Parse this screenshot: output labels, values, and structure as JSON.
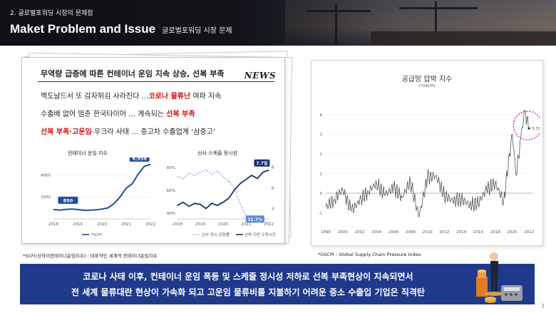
{
  "header": {
    "section": "2. 글로벌포워딩 시장의 문제점",
    "title": "Maket Problem and Issue",
    "subtitle": "글로벌포워딩 시장 문제"
  },
  "news": {
    "headline": "무역량 급증에 따른 컨테이너 운임 지속 상승, 선복 부족",
    "logo": "NEWS",
    "lines": [
      {
        "a": "맥도날드서 또 감자튀김 사라진다 …",
        "red": "코로나 물류난",
        "b": " 여파 지속"
      },
      {
        "a": "수출배 없어 멈춘 한국타이어 … 계속되는 ",
        "red": "선복 부족",
        "b": ""
      },
      {
        "a": "",
        "red": "선복 부족·고운임",
        "b": "·우크라 사태 … 중고차 수출업계 ‘삼중고’"
      }
    ]
  },
  "chart_data": [
    {
      "type": "line",
      "title": "컨테이너 운임 지수",
      "x": [
        2018,
        2018.25,
        2018.5,
        2018.75,
        2019,
        2019.25,
        2019.5,
        2019.75,
        2020,
        2020.25,
        2020.5,
        2020.75,
        2021,
        2021.25,
        2021.5,
        2021.75,
        2022
      ],
      "series": [
        {
          "name": "*SCFI",
          "values": [
            850,
            800,
            860,
            900,
            850,
            780,
            800,
            820,
            900,
            1000,
            1400,
            2000,
            2800,
            3200,
            4100,
            4800,
            4956
          ]
        }
      ],
      "yticks": [
        2000,
        4000
      ],
      "xticks": [
        "2018",
        "2019",
        "2020",
        "2021",
        "2022"
      ],
      "annotations": [
        "850",
        "4,956"
      ],
      "ylim": [
        0,
        5200
      ]
    },
    {
      "type": "line",
      "title": "선사 스케줄 정시성",
      "x": [
        2018,
        2018.25,
        2018.5,
        2018.75,
        2019,
        2019.25,
        2019.5,
        2019.75,
        2020,
        2020.25,
        2020.5,
        2020.75,
        2021,
        2021.25,
        2021.5,
        2021.75,
        2022
      ],
      "series": [
        {
          "name": "선사 정시 운항률",
          "values": [
            72,
            70,
            75,
            73,
            76,
            78,
            74,
            77,
            72,
            68,
            62,
            48,
            38,
            34,
            33,
            32,
            31.7
          ]
        },
        {
          "name": "선박 지연 도착시간",
          "values": [
            4.3,
            4.6,
            4.2,
            4.5,
            4.4,
            4.0,
            4.5,
            4.3,
            4.6,
            5.0,
            5.8,
            6.4,
            6.8,
            7.2,
            6.9,
            7.5,
            7.7
          ]
        }
      ],
      "yticks_left": [
        "40%",
        "60%",
        "80%"
      ],
      "yticks_right": [
        "4",
        "6",
        "8"
      ],
      "xticks": [
        "2018",
        "2019",
        "2020",
        "2021",
        "2022"
      ],
      "annotations": [
        "7.7일",
        "31.7%"
      ],
      "ylim_left": [
        35,
        85
      ],
      "ylim_right": [
        3,
        8.5
      ]
    },
    {
      "type": "line",
      "title": "공급망 압박 지수",
      "unit": "(*GSCPI)",
      "x": [
        1998,
        1999,
        2000,
        2001,
        2002,
        2003,
        2004,
        2005,
        2006,
        2007,
        2008,
        2009,
        2010,
        2011,
        2012,
        2013,
        2014,
        2015,
        2016,
        2017,
        2018,
        2019,
        2020,
        2020.5,
        2021,
        2021.5,
        2022
      ],
      "series": [
        {
          "name": "GSCPI",
          "values": [
            -0.7,
            -0.3,
            0.2,
            -0.9,
            -0.4,
            0.1,
            0.5,
            -0.1,
            0.3,
            -0.2,
            0.6,
            -1.2,
            0.8,
            0.9,
            -0.1,
            -0.4,
            -0.3,
            -0.6,
            -0.5,
            0.2,
            0.5,
            -0.4,
            3.0,
            0.9,
            2.8,
            4.2,
            3.31
          ]
        }
      ],
      "yticks": [
        "-1",
        "0",
        "1",
        "2",
        "3",
        "4"
      ],
      "xticks": [
        "1998",
        "2000",
        "2002",
        "2004",
        "2006",
        "2008",
        "2010",
        "2012",
        "2014",
        "2016",
        "2018",
        "2020",
        "2022"
      ],
      "annotations": [
        "3.31"
      ],
      "ylim": [
        -1.6,
        4.8
      ]
    }
  ],
  "footnotes": {
    "left": "*SCFI(상하이컨테이너운임지수)  : 대표적인 세계적 컨테이너운임지수",
    "right": "*GSCPI : Global  Supply  Chain  Pressure  Index"
  },
  "banner": {
    "line1": "코로나 사태 이후, 컨테이너 운임 폭등 및 스케줄 정시성 저하로 선복 부족현상이 지속되면서",
    "line2": "전 세계 물류대란 현상이 가속화 되고 고운임 물류비를 지불하기 어려운 중소 수출입 기업은 직격탄"
  },
  "page_number": "3",
  "colors": {
    "banner": "#1f3a8a",
    "scfi_line": "#1f4e9e",
    "callout": "#1f4e9e",
    "gscpi_line": "#555555",
    "highlight_circle": "#d11414"
  }
}
